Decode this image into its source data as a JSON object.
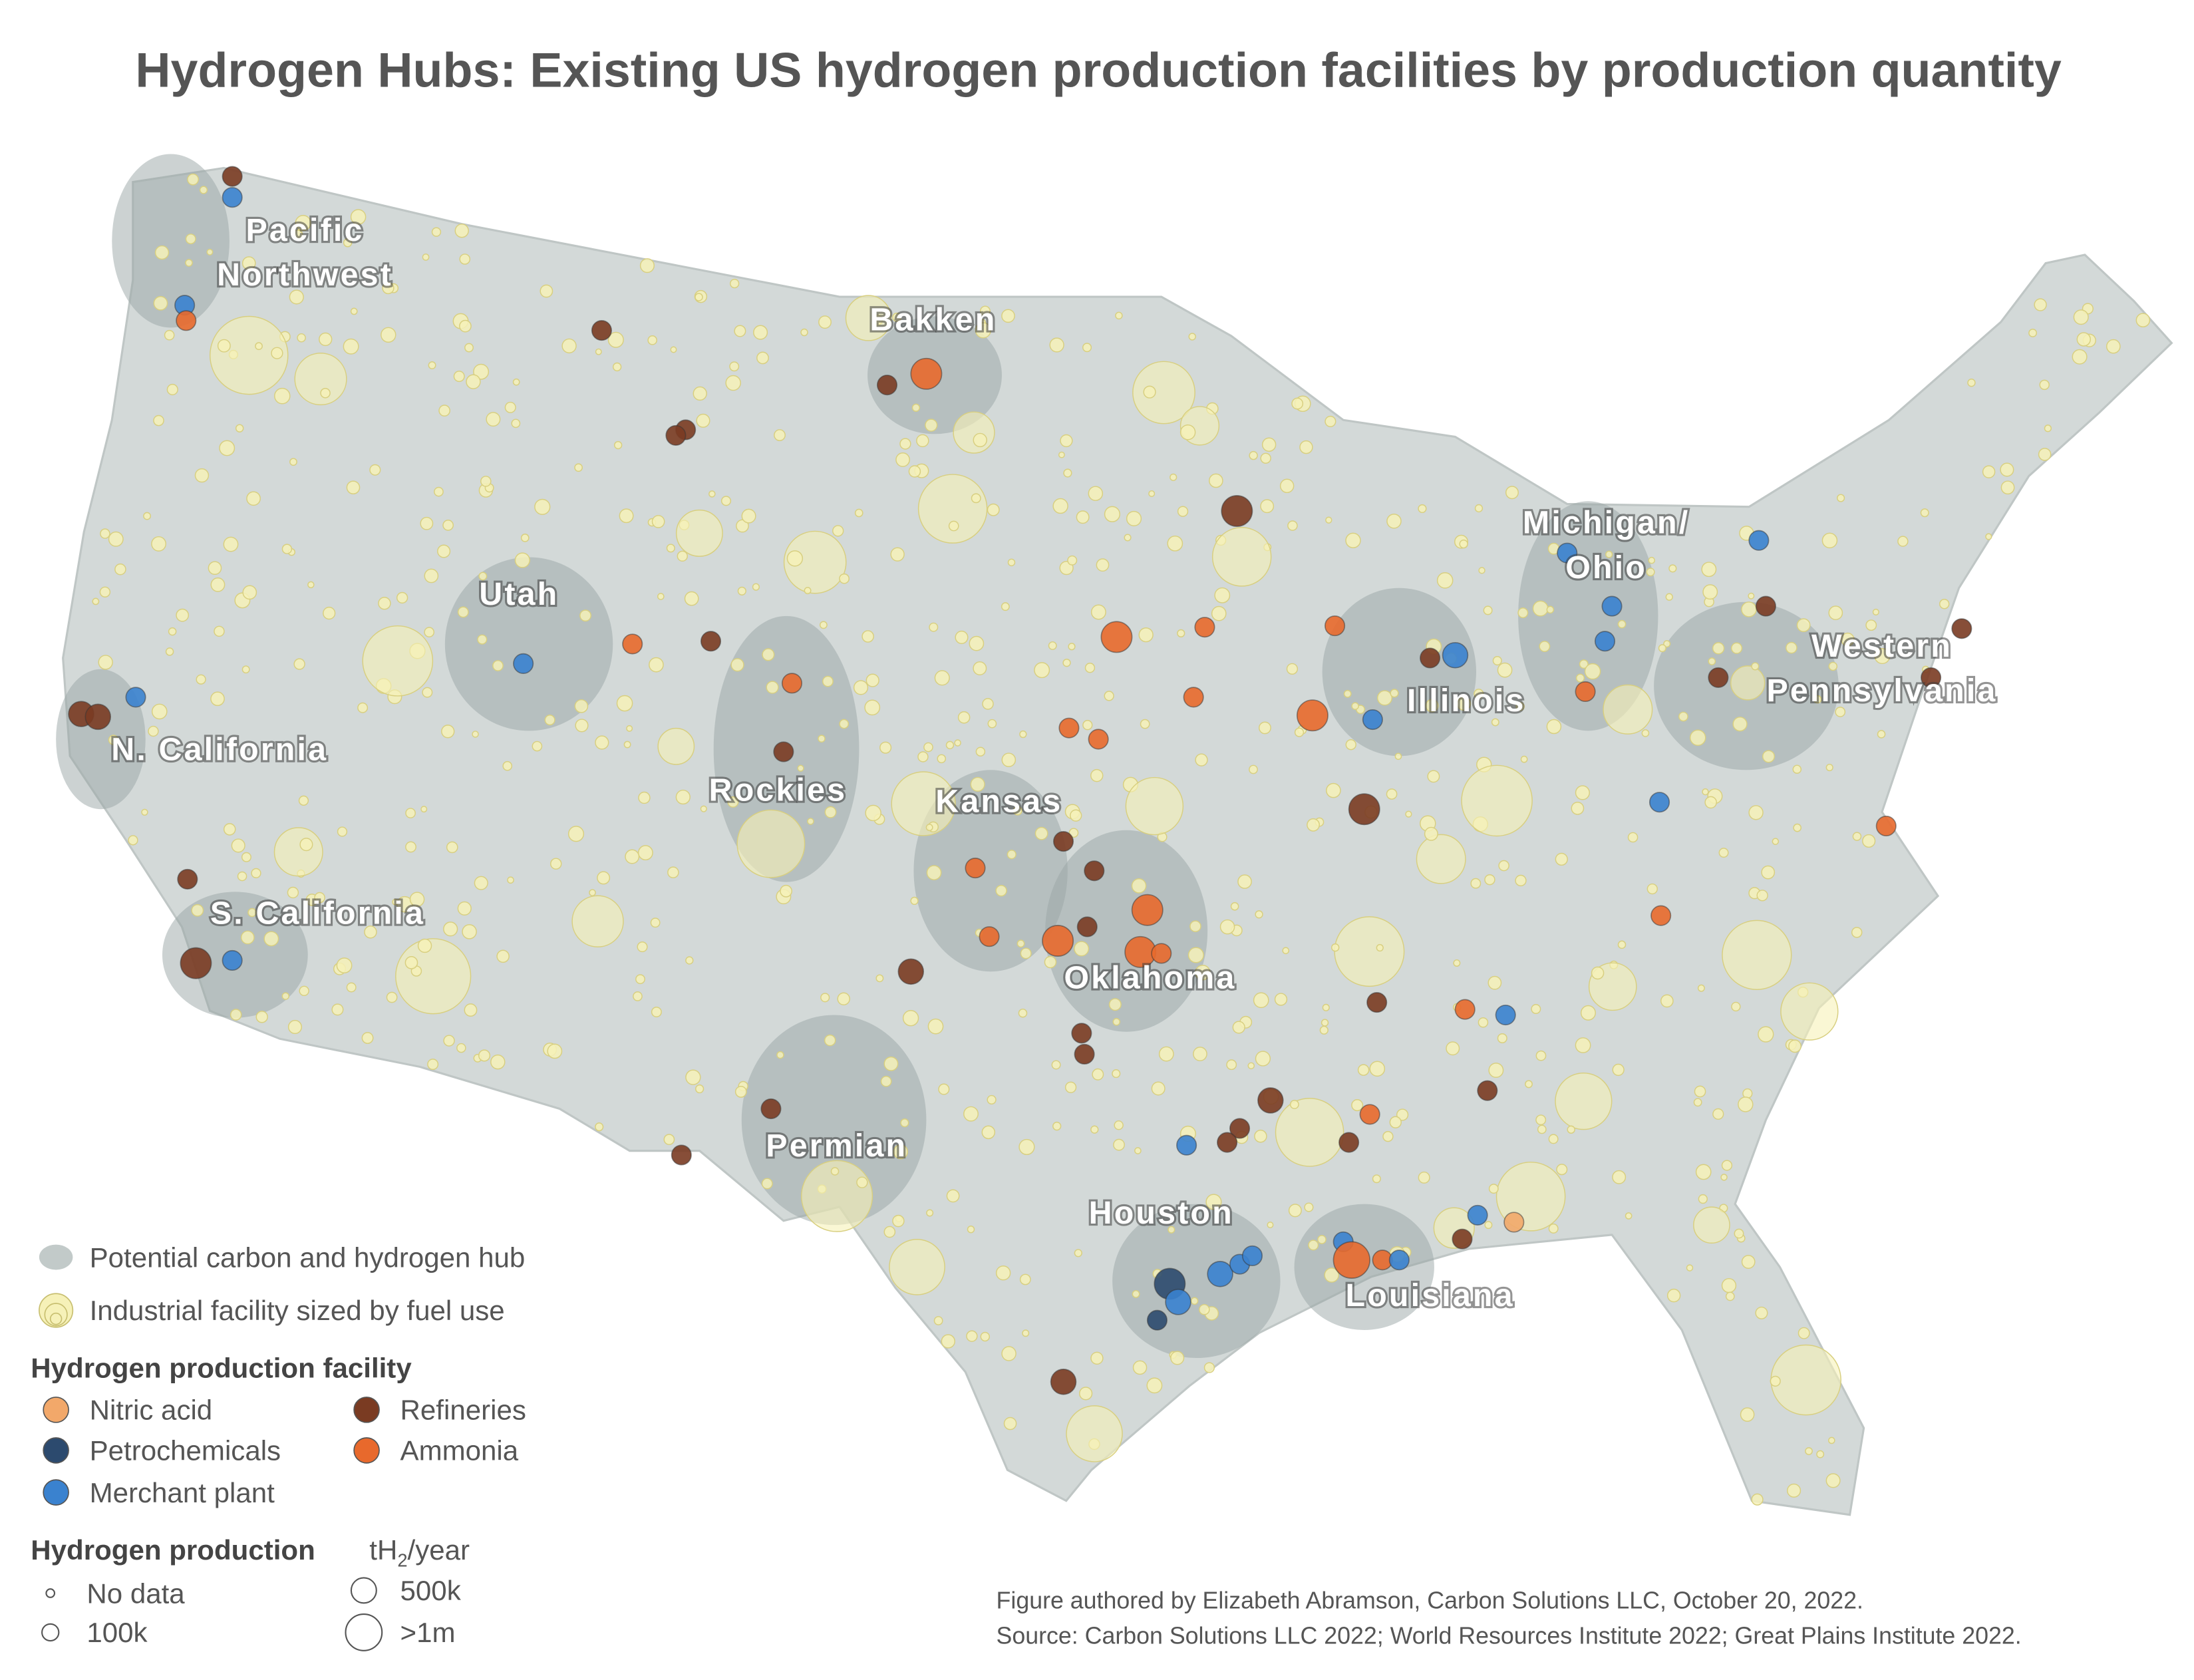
{
  "title": "Hydrogen Hubs: Existing US hydrogen production facilities by production quantity",
  "hubs": [
    {
      "lines": [
        "Pacific",
        "Northwest"
      ]
    },
    {
      "lines": [
        "Bakken"
      ]
    },
    {
      "lines": [
        "Utah"
      ]
    },
    {
      "lines": [
        "N. California"
      ]
    },
    {
      "lines": [
        "Rockies"
      ]
    },
    {
      "lines": [
        "Kansas"
      ]
    },
    {
      "lines": [
        "S. California"
      ]
    },
    {
      "lines": [
        "Oklahoma"
      ]
    },
    {
      "lines": [
        "Permian"
      ]
    },
    {
      "lines": [
        "Houston"
      ]
    },
    {
      "lines": [
        "Louisiana"
      ]
    },
    {
      "lines": [
        "Illinois"
      ]
    },
    {
      "lines": [
        "Michigan/",
        "Ohio"
      ]
    },
    {
      "lines": [
        "Western",
        "Pennsylvania"
      ]
    }
  ],
  "legend": {
    "hub": "Potential carbon and hydrogen hub",
    "industrial": "Industrial facility sized by fuel use",
    "facility_heading": "Hydrogen production facility",
    "facility_types": [
      {
        "label": "Nitric acid",
        "color": "#f2a86a"
      },
      {
        "label": "Petrochemicals",
        "color": "#2c4a6e"
      },
      {
        "label": "Merchant plant",
        "color": "#3a82cf"
      },
      {
        "label": "Refineries",
        "color": "#7a3b22"
      },
      {
        "label": "Ammonia",
        "color": "#e8692c"
      }
    ],
    "production_heading": "Hydrogen production",
    "production_unit": {
      "base": "tH",
      "subscript": "2",
      "suffix": "/year"
    },
    "sizes": [
      "No data",
      "100k",
      "500k",
      ">1m"
    ]
  },
  "footer": [
    "Figure authored by Elizabeth Abramson, Carbon Solutions LLC, October 20, 2022.",
    "Source: Carbon Solutions LLC 2022; World Resources Institute 2022; Great Plains Institute 2022."
  ]
}
